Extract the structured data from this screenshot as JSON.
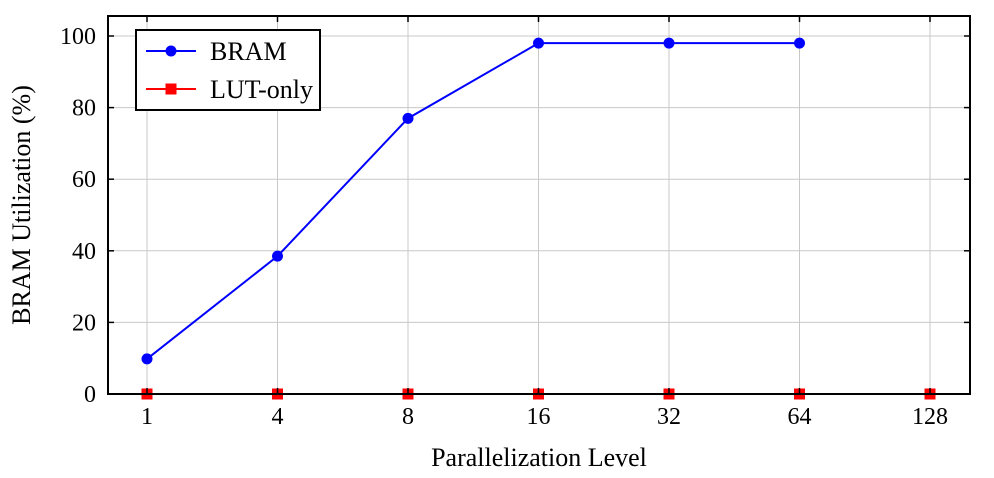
{
  "chart_data": {
    "type": "line",
    "title": "",
    "xlabel": "Parallelization Level",
    "ylabel": "BRAM Utilization (%)",
    "categories": [
      "1",
      "4",
      "8",
      "16",
      "32",
      "64",
      "128"
    ],
    "ylim": [
      0,
      100
    ],
    "yticks": [
      "0",
      "20",
      "40",
      "60",
      "80",
      "100"
    ],
    "grid": true,
    "legend_position": "top-left",
    "series": [
      {
        "name": "BRAM",
        "color": "#0000ff",
        "marker": "circle",
        "values": [
          9.8,
          38.5,
          77,
          98,
          98,
          98,
          null
        ]
      },
      {
        "name": "LUT-only",
        "color": "#ff0000",
        "marker": "square",
        "values": [
          0,
          0,
          0,
          0,
          0,
          0,
          0
        ]
      }
    ]
  }
}
